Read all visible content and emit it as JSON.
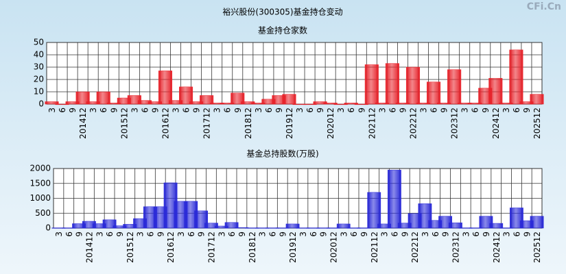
{
  "title": "裕兴股份(300305)基金持仓变动",
  "watermark": "CFi.Cn",
  "chart_data": [
    {
      "type": "bar",
      "title": "基金持仓家数",
      "categories": [
        "3",
        "6",
        "9",
        "201412",
        "3",
        "6",
        "9",
        "201512",
        "3",
        "6",
        "9",
        "201612",
        "3",
        "6",
        "9",
        "201712",
        "3",
        "6",
        "9",
        "201812",
        "3",
        "6",
        "9",
        "201912",
        "3",
        "6",
        "9",
        "202012",
        "3",
        "6",
        "9",
        "202112",
        "3",
        "6",
        "9",
        "202212",
        "3",
        "6",
        "9",
        "202312",
        "3",
        "6",
        "9",
        "202412",
        "3",
        "6",
        "9",
        "202512"
      ],
      "values": [
        2,
        0,
        2,
        10,
        2,
        10,
        1,
        5,
        7,
        3,
        2,
        27,
        3,
        14,
        2,
        7,
        1,
        1,
        9,
        2,
        1,
        4,
        7,
        8,
        0,
        0,
        2,
        1,
        0,
        1,
        0,
        32,
        1,
        33,
        1,
        30,
        1,
        18,
        1,
        28,
        1,
        1,
        13,
        21,
        1,
        44,
        2,
        8
      ],
      "color": "#e8232b",
      "ylim": [
        0,
        50
      ],
      "yticks": [
        0,
        10,
        20,
        30,
        40,
        50
      ],
      "grid": true
    },
    {
      "type": "bar",
      "title": "基金总持股数(万股)",
      "categories": [
        "3",
        "6",
        "9",
        "201412",
        "3",
        "6",
        "9",
        "201512",
        "3",
        "6",
        "9",
        "201612",
        "3",
        "6",
        "9",
        "201712",
        "3",
        "6",
        "9",
        "201812",
        "3",
        "6",
        "9",
        "201912",
        "3",
        "6",
        "9",
        "202012",
        "3",
        "6",
        "9",
        "202112",
        "3",
        "6",
        "9",
        "202212",
        "3",
        "6",
        "9",
        "202312",
        "3",
        "6",
        "9",
        "202412",
        "3",
        "6",
        "9",
        "202512"
      ],
      "values": [
        10,
        10,
        150,
        230,
        150,
        280,
        80,
        130,
        320,
        720,
        720,
        1520,
        900,
        900,
        580,
        170,
        70,
        190,
        20,
        10,
        10,
        10,
        10,
        140,
        10,
        10,
        10,
        10,
        140,
        10,
        10,
        1200,
        140,
        1950,
        170,
        490,
        820,
        260,
        400,
        180,
        10,
        10,
        400,
        160,
        10,
        680,
        250,
        400
      ],
      "color": "#2a2ad8",
      "ylim": [
        0,
        2000
      ],
      "yticks": [
        0,
        500,
        1000,
        1500,
        2000
      ],
      "grid": true
    }
  ]
}
